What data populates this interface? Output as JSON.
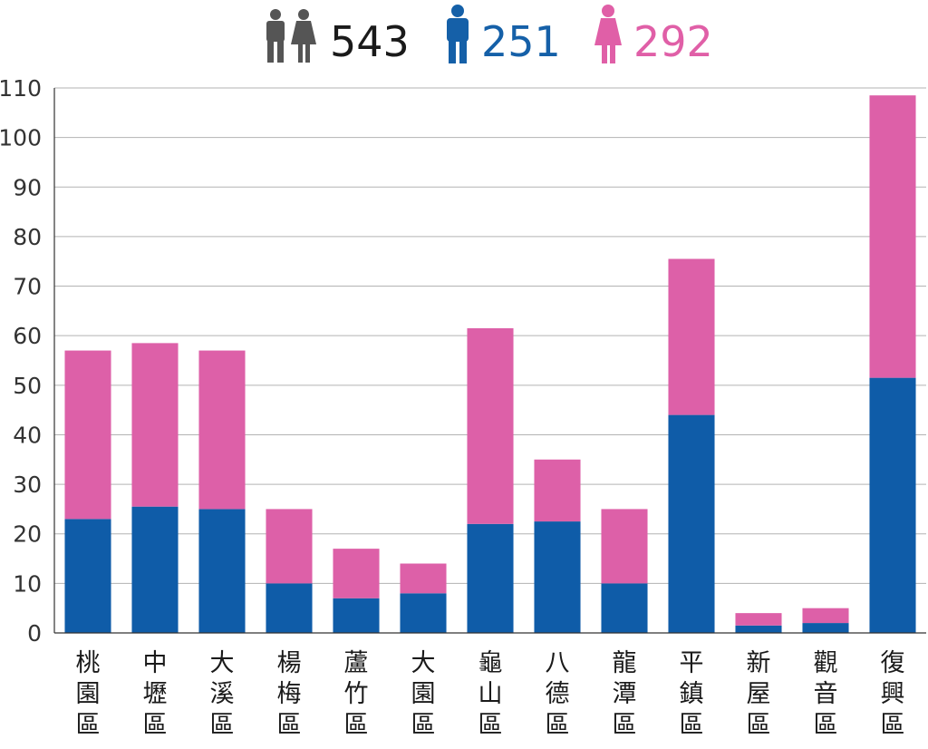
{
  "legend": {
    "total": {
      "value": "543",
      "color": "#1a1a1a",
      "icon": "people-icon"
    },
    "male": {
      "value": "251",
      "color": "#1560a8",
      "icon": "male-icon"
    },
    "female": {
      "value": "292",
      "color": "#e05fa7",
      "icon": "female-icon"
    }
  },
  "chart_data": {
    "type": "bar",
    "stacked": true,
    "categories": [
      "桃園區",
      "中壢區",
      "大溪區",
      "楊梅區",
      "蘆竹區",
      "大園區",
      "龜山區",
      "八德區",
      "龍潭區",
      "平鎮區",
      "新屋區",
      "觀音區",
      "復興區"
    ],
    "series": [
      {
        "values": [
          23,
          25.5,
          25,
          10,
          7,
          8,
          22,
          22.5,
          10,
          44,
          1.5,
          2,
          51.5
        ],
        "color": "#0f5ca8"
      },
      {
        "values": [
          34,
          33,
          32,
          15,
          10,
          6,
          39.5,
          12.5,
          15,
          31.5,
          2.5,
          3,
          57
        ],
        "color": "#dd60a8"
      }
    ],
    "ylim": [
      0,
      110
    ],
    "yticks": [
      0,
      10,
      20,
      30,
      40,
      50,
      60,
      70,
      80,
      90,
      100,
      110
    ],
    "grid": true,
    "legend_position": "top-center"
  }
}
